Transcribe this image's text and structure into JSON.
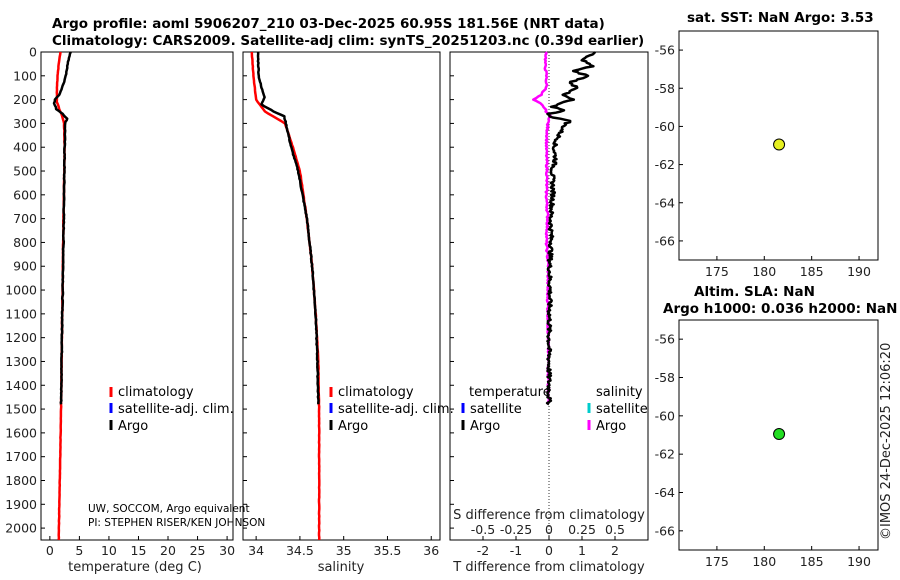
{
  "titles": {
    "line1": "Argo profile: aoml 5906207_210 03-Dec-2025 60.95S 181.56E (NRT data)",
    "line2": "Climatology: CARS2009. Satellite-adj clim: synTS_20251203.nc (0.39d earlier)",
    "sst": "sat. SST: NaN Argo: 3.53",
    "sla1": "Altim. SLA: NaN",
    "sla2": "Argo h1000: 0.036 h2000: NaN"
  },
  "watermark": "©IMOS 24-Dec-2025 12:06:20",
  "credits": [
    "UW, SOCCOM, Argo equivalent",
    "PI: STEPHEN RISER/KEN JOHNSON"
  ],
  "legend": {
    "climatology": "climatology",
    "satellite": "satellite-adj. clim.",
    "argo": "Argo",
    "temperature": "temperature",
    "salinity": "salinity",
    "satellite_short": "satellite",
    "argo2": "Argo"
  },
  "colors": {
    "climatology": "#ff0000",
    "satellite": "#0000ff",
    "argo": "#000000",
    "salinity_diff": "#ff00ff",
    "salinity_sat": "#00cccc",
    "marker_sst": "#e6f020",
    "marker_sla": "#22dd22"
  },
  "chart_data": [
    {
      "id": "temperature",
      "type": "line",
      "xlabel": "temperature (deg C)",
      "ylabel": "",
      "xlim": [
        -1.5,
        31
      ],
      "ylim": [
        2050,
        0
      ],
      "xticks": [
        0,
        5,
        10,
        15,
        20,
        25,
        30
      ],
      "yticks": [
        0,
        100,
        200,
        300,
        400,
        500,
        600,
        700,
        800,
        900,
        1000,
        1100,
        1200,
        1300,
        1400,
        1500,
        1600,
        1700,
        1800,
        1900,
        2000
      ],
      "series": [
        {
          "name": "climatology",
          "depth": [
            0,
            50,
            100,
            150,
            180,
            210,
            240,
            270,
            300,
            400,
            500,
            700,
            900,
            1100,
            1300,
            1500,
            1700,
            1900,
            2050
          ],
          "values": [
            1.8,
            1.5,
            1.3,
            1.2,
            1.2,
            1.2,
            1.6,
            2.1,
            2.4,
            2.5,
            2.45,
            2.3,
            2.2,
            2.1,
            2.0,
            1.9,
            1.75,
            1.6,
            1.5
          ]
        },
        {
          "name": "Argo",
          "depth": [
            0,
            50,
            100,
            150,
            180,
            200,
            215,
            240,
            260,
            280,
            300,
            400,
            500,
            700,
            900,
            1100,
            1300,
            1480
          ],
          "values": [
            3.53,
            3.0,
            2.7,
            2.1,
            1.6,
            0.9,
            0.7,
            1.1,
            2.2,
            2.9,
            2.6,
            2.5,
            2.45,
            2.35,
            2.25,
            2.1,
            2.0,
            1.9
          ]
        }
      ]
    },
    {
      "id": "salinity",
      "type": "line",
      "xlabel": "salinity",
      "ylabel": "",
      "xlim": [
        33.85,
        36.1
      ],
      "ylim": [
        2050,
        0
      ],
      "xticks": [
        34,
        34.5,
        35,
        35.5,
        36
      ],
      "xticklabels": [
        "34",
        "34.5",
        "35",
        "35.5",
        "36"
      ],
      "series": [
        {
          "name": "climatology",
          "depth": [
            0,
            100,
            200,
            250,
            300,
            400,
            500,
            700,
            900,
            1100,
            1300,
            1500,
            1700,
            1900,
            2050
          ],
          "values": [
            33.95,
            33.97,
            34.0,
            34.1,
            34.33,
            34.42,
            34.5,
            34.58,
            34.64,
            34.68,
            34.71,
            34.72,
            34.72,
            34.72,
            34.72
          ]
        },
        {
          "name": "Argo",
          "depth": [
            0,
            100,
            150,
            190,
            220,
            250,
            270,
            300,
            400,
            500,
            700,
            900,
            1100,
            1300,
            1480
          ],
          "values": [
            34.02,
            34.03,
            34.06,
            34.1,
            34.06,
            34.2,
            34.32,
            34.34,
            34.4,
            34.48,
            34.58,
            34.64,
            34.68,
            34.7,
            34.71
          ]
        }
      ]
    },
    {
      "id": "difference",
      "type": "line",
      "xlabel": "T difference from climatology",
      "top_label": "S difference from climatology",
      "xlim": [
        -3,
        3
      ],
      "ylim": [
        2050,
        0
      ],
      "xticks": [
        -2,
        -1,
        0,
        1,
        2
      ],
      "s_xlim": [
        -0.75,
        0.75
      ],
      "s_xticks": [
        -0.5,
        -0.25,
        0,
        0.25,
        0.5
      ],
      "s_xticklabels": [
        "-0.5",
        "-0.25",
        "0",
        "0.25",
        "0.5"
      ],
      "series": [
        {
          "name": "T Argo",
          "depth": [
            0,
            30,
            60,
            80,
            100,
            130,
            150,
            180,
            200,
            215,
            230,
            245,
            260,
            275,
            290,
            300,
            350,
            400,
            450,
            500,
            600,
            700,
            800,
            900,
            1000,
            1200,
            1480
          ],
          "values": [
            1.4,
            1.0,
            1.3,
            0.7,
            1.2,
            0.6,
            0.9,
            0.4,
            0.7,
            0.3,
            0.1,
            0.5,
            0.0,
            0.1,
            0.7,
            0.5,
            0.3,
            0.15,
            0.2,
            0.1,
            0.12,
            0.05,
            0.07,
            0.02,
            0.03,
            0.0,
            0.0
          ]
        },
        {
          "name": "S Argo",
          "depth": [
            0,
            50,
            100,
            150,
            180,
            200,
            215,
            230,
            250,
            270,
            300,
            400,
            500,
            600,
            700,
            800,
            900,
            1000,
            1200,
            1480
          ],
          "values": [
            -0.02,
            -0.03,
            -0.02,
            -0.02,
            -0.06,
            -0.12,
            -0.07,
            -0.04,
            -0.02,
            0.01,
            -0.01,
            -0.02,
            -0.015,
            -0.02,
            -0.01,
            -0.02,
            -0.005,
            -0.01,
            -0.005,
            -0.005
          ]
        }
      ]
    },
    {
      "id": "map_sst",
      "type": "scatter",
      "title": "sat. SST: NaN Argo: 3.53",
      "xlim": [
        171,
        192
      ],
      "ylim": [
        -67,
        -55
      ],
      "xticks": [
        175,
        180,
        185,
        190
      ],
      "yticks": [
        -56,
        -58,
        -60,
        -62,
        -64,
        -66
      ],
      "points": [
        {
          "lon": 181.56,
          "lat": -60.95
        }
      ]
    },
    {
      "id": "map_sla",
      "type": "scatter",
      "title": "Altim. SLA: NaN / Argo h1000: 0.036 h2000: NaN",
      "xlim": [
        171,
        192
      ],
      "ylim": [
        -67,
        -55
      ],
      "xticks": [
        175,
        180,
        185,
        190
      ],
      "yticks": [
        -56,
        -58,
        -60,
        -62,
        -64,
        -66
      ],
      "points": [
        {
          "lon": 181.56,
          "lat": -60.95
        }
      ]
    }
  ]
}
